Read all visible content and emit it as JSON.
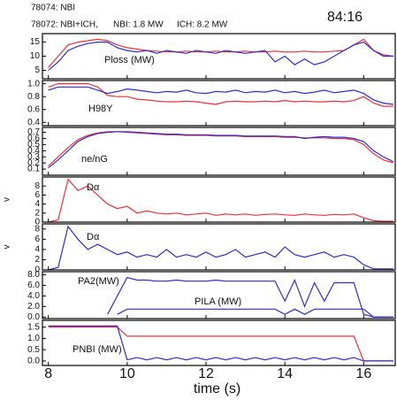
{
  "header": {
    "shot1": "78074: NBI",
    "shot2": "78072: NBI+ICH,",
    "nbi": "NBI: 1.8 MW",
    "ich": "ICH: 8.2 MW",
    "time": "84:16"
  },
  "chart_data": [
    {
      "type": "line",
      "xlim": [
        7.85,
        16.8
      ],
      "xticks": [
        8,
        10,
        12,
        14,
        16
      ],
      "ylim": [
        2,
        18
      ],
      "yticks": [
        5,
        10,
        15
      ],
      "annotations": [
        "Ploss (MW)"
      ],
      "x": [
        8,
        8.25,
        8.5,
        8.75,
        9,
        9.25,
        9.5,
        9.75,
        10,
        10.25,
        10.5,
        10.75,
        11,
        11.25,
        11.5,
        11.75,
        12,
        12.25,
        12.5,
        12.75,
        13,
        13.25,
        13.5,
        13.75,
        14,
        14.25,
        14.5,
        14.75,
        15,
        15.25,
        15.5,
        15.75,
        16,
        16.25,
        16.5,
        16.75
      ],
      "series": [
        {
          "color": "#e8323a",
          "values": [
            6,
            10,
            14,
            15,
            15.5,
            16,
            15.5,
            14,
            13,
            12.5,
            12,
            11.8,
            11.5,
            11.5,
            11.8,
            11.5,
            11.5,
            11.8,
            11.5,
            11.5,
            11.8,
            11.5,
            11.5,
            11.8,
            11.5,
            11.5,
            11.8,
            11.5,
            11.5,
            11.8,
            12,
            14,
            16,
            12,
            10.5,
            10
          ]
        },
        {
          "color": "#2e2ec8",
          "values": [
            5,
            8,
            12,
            13.5,
            14.5,
            15,
            15,
            13,
            12,
            11.5,
            12,
            11,
            12,
            11.5,
            11,
            12,
            11.5,
            11,
            12,
            11.5,
            11,
            11.5,
            12,
            8,
            10,
            7,
            9,
            7,
            8,
            10,
            12,
            14,
            15,
            12,
            10,
            10
          ]
        }
      ]
    },
    {
      "type": "line",
      "xlim": [
        7.85,
        16.8
      ],
      "xticks": [
        8,
        10,
        12,
        14,
        16
      ],
      "ylim": [
        0.35,
        1.05
      ],
      "yticks": [
        0.4,
        0.6,
        0.8,
        {
          "value": 1.0,
          "label": "1.0"
        }
      ],
      "annotations": [
        "H98Y"
      ],
      "x": [
        8,
        8.25,
        8.5,
        8.75,
        9,
        9.25,
        9.5,
        9.75,
        10,
        10.25,
        10.5,
        10.75,
        11,
        11.25,
        11.5,
        11.75,
        12,
        12.25,
        12.5,
        12.75,
        13,
        13.25,
        13.5,
        13.75,
        14,
        14.25,
        14.5,
        14.75,
        15,
        15.25,
        15.5,
        15.75,
        16,
        16.25,
        16.5,
        16.75
      ],
      "series": [
        {
          "color": "#e8323a",
          "values": [
            0.95,
            1.0,
            1.0,
            1.0,
            1.0,
            0.95,
            0.82,
            0.8,
            0.8,
            0.76,
            0.75,
            0.73,
            0.72,
            0.72,
            0.73,
            0.72,
            0.7,
            0.68,
            0.72,
            0.73,
            0.72,
            0.72,
            0.73,
            0.72,
            0.74,
            0.72,
            0.73,
            0.72,
            0.72,
            0.73,
            0.72,
            0.74,
            0.8,
            0.7,
            0.65,
            0.65
          ]
        },
        {
          "color": "#2e2ec8",
          "values": [
            0.9,
            0.95,
            0.95,
            0.95,
            0.95,
            0.9,
            0.85,
            0.88,
            0.92,
            0.9,
            0.88,
            0.86,
            0.88,
            0.87,
            0.9,
            0.86,
            0.85,
            0.88,
            0.87,
            0.9,
            0.86,
            0.88,
            0.87,
            0.9,
            0.86,
            0.88,
            0.85,
            0.87,
            0.9,
            0.86,
            0.88,
            0.9,
            0.85,
            0.75,
            0.7,
            0.68
          ]
        }
      ]
    },
    {
      "type": "line",
      "xlim": [
        7.85,
        16.8
      ],
      "xticks": [
        8,
        10,
        12,
        14,
        16
      ],
      "ylim": [
        0,
        0.78
      ],
      "yticks": [
        0.1,
        0.2,
        0.3,
        0.4,
        0.5,
        0.6,
        0.7
      ],
      "annotations": [
        "ne/nG"
      ],
      "x": [
        8,
        8.25,
        8.5,
        8.75,
        9,
        9.25,
        9.5,
        9.75,
        10,
        10.25,
        10.5,
        10.75,
        11,
        11.25,
        11.5,
        11.75,
        12,
        12.25,
        12.5,
        12.75,
        13,
        13.25,
        13.5,
        13.75,
        14,
        14.25,
        14.5,
        14.75,
        15,
        15.25,
        15.5,
        15.75,
        16,
        16.25,
        16.5,
        16.75
      ],
      "series": [
        {
          "color": "#e8323a",
          "values": [
            0.15,
            0.3,
            0.45,
            0.58,
            0.65,
            0.69,
            0.71,
            0.71,
            0.7,
            0.69,
            0.68,
            0.67,
            0.66,
            0.66,
            0.65,
            0.65,
            0.65,
            0.64,
            0.64,
            0.64,
            0.63,
            0.63,
            0.63,
            0.63,
            0.62,
            0.62,
            0.61,
            0.61,
            0.61,
            0.6,
            0.6,
            0.58,
            0.5,
            0.35,
            0.25,
            0.2
          ]
        },
        {
          "color": "#2e2ec8",
          "values": [
            0.12,
            0.25,
            0.4,
            0.55,
            0.63,
            0.68,
            0.7,
            0.71,
            0.71,
            0.7,
            0.69,
            0.68,
            0.67,
            0.67,
            0.66,
            0.66,
            0.66,
            0.65,
            0.65,
            0.65,
            0.64,
            0.64,
            0.64,
            0.64,
            0.63,
            0.63,
            0.6,
            0.62,
            0.63,
            0.62,
            0.62,
            0.6,
            0.55,
            0.4,
            0.3,
            0.22
          ]
        }
      ]
    },
    {
      "type": "line",
      "xlim": [
        7.85,
        16.8
      ],
      "xticks": [
        8,
        10,
        12,
        14,
        16
      ],
      "ylim": [
        0,
        10
      ],
      "yticks": [
        0,
        2,
        4,
        6,
        8
      ],
      "ylabel": "v",
      "annotations": [
        "Dα"
      ],
      "x": [
        8,
        8.25,
        8.5,
        8.75,
        9,
        9.25,
        9.5,
        9.75,
        10,
        10.25,
        10.5,
        10.75,
        11,
        11.25,
        11.5,
        11.75,
        12,
        12.25,
        12.5,
        12.75,
        13,
        13.25,
        13.5,
        13.75,
        14,
        14.25,
        14.5,
        14.75,
        15,
        15.25,
        15.5,
        15.75,
        16,
        16.25,
        16.5,
        16.75
      ],
      "series": [
        {
          "color": "#e8323a",
          "values": [
            0,
            0.5,
            9.5,
            7,
            8,
            6,
            4,
            3,
            3.5,
            2,
            2.5,
            2,
            1.8,
            2,
            1.6,
            1.8,
            2,
            1.5,
            1.8,
            1.6,
            1.8,
            1.5,
            1.7,
            1.8,
            1.6,
            1.5,
            1.8,
            1.6,
            1.5,
            1.7,
            1.6,
            1.8,
            1,
            0.3,
            0.2,
            0.2
          ]
        }
      ]
    },
    {
      "type": "line",
      "xlim": [
        7.85,
        16.8
      ],
      "xticks": [
        8,
        10,
        12,
        14,
        16
      ],
      "ylim": [
        0,
        9
      ],
      "yticks": [
        0,
        2,
        4,
        6,
        8
      ],
      "ylabel": "v",
      "annotations": [
        "Dα"
      ],
      "x": [
        8,
        8.25,
        8.5,
        8.75,
        9,
        9.25,
        9.5,
        9.75,
        10,
        10.25,
        10.5,
        10.75,
        11,
        11.25,
        11.5,
        11.75,
        12,
        12.25,
        12.5,
        12.75,
        13,
        13.25,
        13.5,
        13.75,
        14,
        14.25,
        14.5,
        14.75,
        15,
        15.25,
        15.5,
        15.75,
        16,
        16.25,
        16.5,
        16.75
      ],
      "series": [
        {
          "color": "#2e2ec8",
          "values": [
            0,
            0.5,
            8.5,
            6,
            4,
            5,
            4,
            3,
            3.5,
            2.5,
            3,
            2.5,
            4,
            2.5,
            3,
            2.5,
            3.5,
            2.5,
            3,
            4,
            2.5,
            3,
            3.5,
            2.5,
            4.5,
            3,
            2.5,
            3,
            3.5,
            2.5,
            3,
            2.5,
            1,
            0.2,
            0.2,
            0.2
          ]
        }
      ]
    },
    {
      "type": "line",
      "xlim": [
        7.85,
        16.8
      ],
      "xticks": [
        8,
        10,
        12,
        14,
        16
      ],
      "ylim": [
        -0.3,
        8.6
      ],
      "yticks": [
        {
          "value": 0,
          "label": "0.0"
        },
        {
          "value": 2,
          "label": "2.0"
        },
        {
          "value": 4,
          "label": "4.0"
        },
        {
          "value": 6,
          "label": "6.0"
        },
        {
          "value": 8,
          "label": "8.0"
        }
      ],
      "annotations": [
        "PA2(MW)",
        "PILA (MW)"
      ],
      "x": [
        8,
        8.25,
        8.5,
        8.75,
        9,
        9.25,
        9.5,
        9.75,
        10,
        10.25,
        10.5,
        10.75,
        11,
        11.25,
        11.5,
        11.75,
        12,
        12.25,
        12.5,
        12.75,
        13,
        13.25,
        13.5,
        13.75,
        14,
        14.25,
        14.5,
        14.75,
        15,
        15.25,
        15.5,
        15.75,
        16,
        16.25,
        16.5,
        16.75
      ],
      "series": [
        {
          "color": "#2e2ec8",
          "values": [
            null,
            null,
            null,
            null,
            null,
            null,
            0.5,
            4,
            7.5,
            7,
            7,
            6.8,
            6.8,
            7,
            6.8,
            6.8,
            6.8,
            7,
            6.8,
            6.8,
            6.8,
            6.8,
            6.8,
            6.8,
            3,
            7,
            2,
            6.5,
            3,
            6.5,
            6.5,
            6.5,
            0.5,
            0,
            0,
            0
          ]
        },
        {
          "color": "#2e2ec8",
          "values": [
            null,
            null,
            null,
            null,
            null,
            null,
            null,
            0.5,
            1.5,
            1.5,
            1.5,
            1.5,
            1.5,
            1.5,
            1.5,
            1.5,
            1.5,
            1.5,
            1.5,
            1.5,
            1.5,
            1.5,
            1.5,
            1.5,
            0.5,
            1.5,
            0.5,
            1.5,
            1.5,
            1.5,
            1.5,
            1.5,
            1.5,
            0,
            0,
            0
          ]
        }
      ]
    },
    {
      "type": "line",
      "xlim": [
        7.85,
        16.8
      ],
      "xticks": [
        8,
        10,
        12,
        14,
        16
      ],
      "xlabel": "time (s)",
      "ylim": [
        -0.2,
        1.8
      ],
      "yticks": [
        {
          "value": 0,
          "label": "0.0"
        },
        0.5,
        {
          "value": 1,
          "label": "1.0"
        },
        1.5
      ],
      "annotations": [
        "PNBI (MW)"
      ],
      "x": [
        8,
        8.25,
        8.5,
        8.75,
        9,
        9.25,
        9.5,
        9.75,
        10,
        10.25,
        10.5,
        10.75,
        11,
        11.25,
        11.5,
        11.75,
        12,
        12.25,
        12.5,
        12.75,
        13,
        13.25,
        13.5,
        13.75,
        14,
        14.25,
        14.5,
        14.75,
        15,
        15.25,
        15.5,
        15.75,
        16,
        16.25,
        16.5,
        16.75
      ],
      "series": [
        {
          "color": "#e8323a",
          "values": [
            1.5,
            1.5,
            1.5,
            1.5,
            1.5,
            1.5,
            1.5,
            1.5,
            1.1,
            1.1,
            1.1,
            1.1,
            1.1,
            1.1,
            1.1,
            1.1,
            1.1,
            1.1,
            1.1,
            1.1,
            1.1,
            1.1,
            1.1,
            1.1,
            1.1,
            1.1,
            1.1,
            1.1,
            1.1,
            1.1,
            1.1,
            1.1,
            0,
            0,
            0,
            0
          ]
        },
        {
          "color": "#2e2ec8",
          "values": [
            1.55,
            1.55,
            1.55,
            1.55,
            1.55,
            1.55,
            1.55,
            1.55,
            0.05,
            0.15,
            0.05,
            0.15,
            0.05,
            0.15,
            0.05,
            0.15,
            0.05,
            0.15,
            0.05,
            0.15,
            0.05,
            0.15,
            0.05,
            0.15,
            0.05,
            0.15,
            0.05,
            0.15,
            0.05,
            0.15,
            0.05,
            0.15,
            0,
            0,
            0,
            0
          ]
        }
      ]
    }
  ]
}
